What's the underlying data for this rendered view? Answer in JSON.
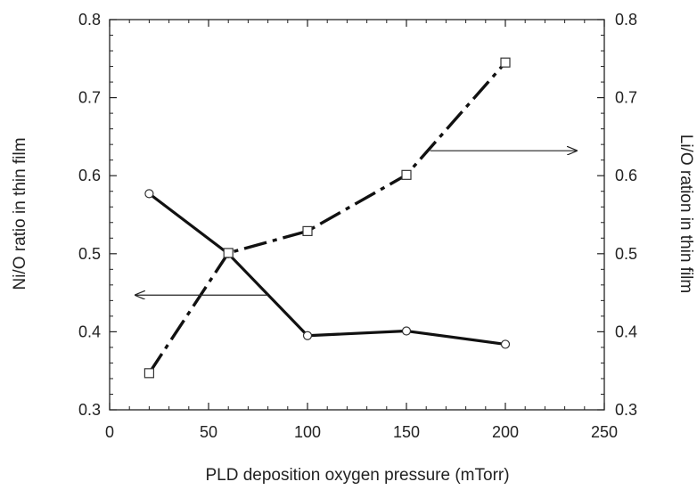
{
  "chart_data": {
    "type": "line",
    "title": "",
    "xlabel": "PLD deposition oxygen pressure (mTorr)",
    "ylabel_left": "Ni/O ratio in thin film",
    "ylabel_right": "Li/O ration in thin film",
    "xlim": [
      0,
      250
    ],
    "ylim_left": [
      0.3,
      0.8
    ],
    "ylim_right": [
      0.3,
      0.8
    ],
    "x_ticks": [
      0,
      50,
      100,
      150,
      200,
      250
    ],
    "y_ticks": [
      0.3,
      0.4,
      0.5,
      0.6,
      0.7,
      0.8
    ],
    "x_tick_labels": [
      "0",
      "50",
      "100",
      "150",
      "200",
      "250"
    ],
    "y_tick_labels": [
      "0.3",
      "0.4",
      "0.5",
      "0.6",
      "0.7",
      "0.8"
    ],
    "grid": false,
    "series": [
      {
        "axis": "left",
        "marker": "circle",
        "line_style": "solid",
        "x": [
          20,
          60,
          100,
          150,
          200
        ],
        "y": [
          0.577,
          0.5,
          0.395,
          0.401,
          0.384
        ]
      },
      {
        "axis": "right",
        "marker": "square",
        "line_style": "dashed",
        "x": [
          20,
          60,
          100,
          150,
          200
        ],
        "y": [
          0.347,
          0.501,
          0.529,
          0.601,
          0.745
        ]
      }
    ]
  }
}
